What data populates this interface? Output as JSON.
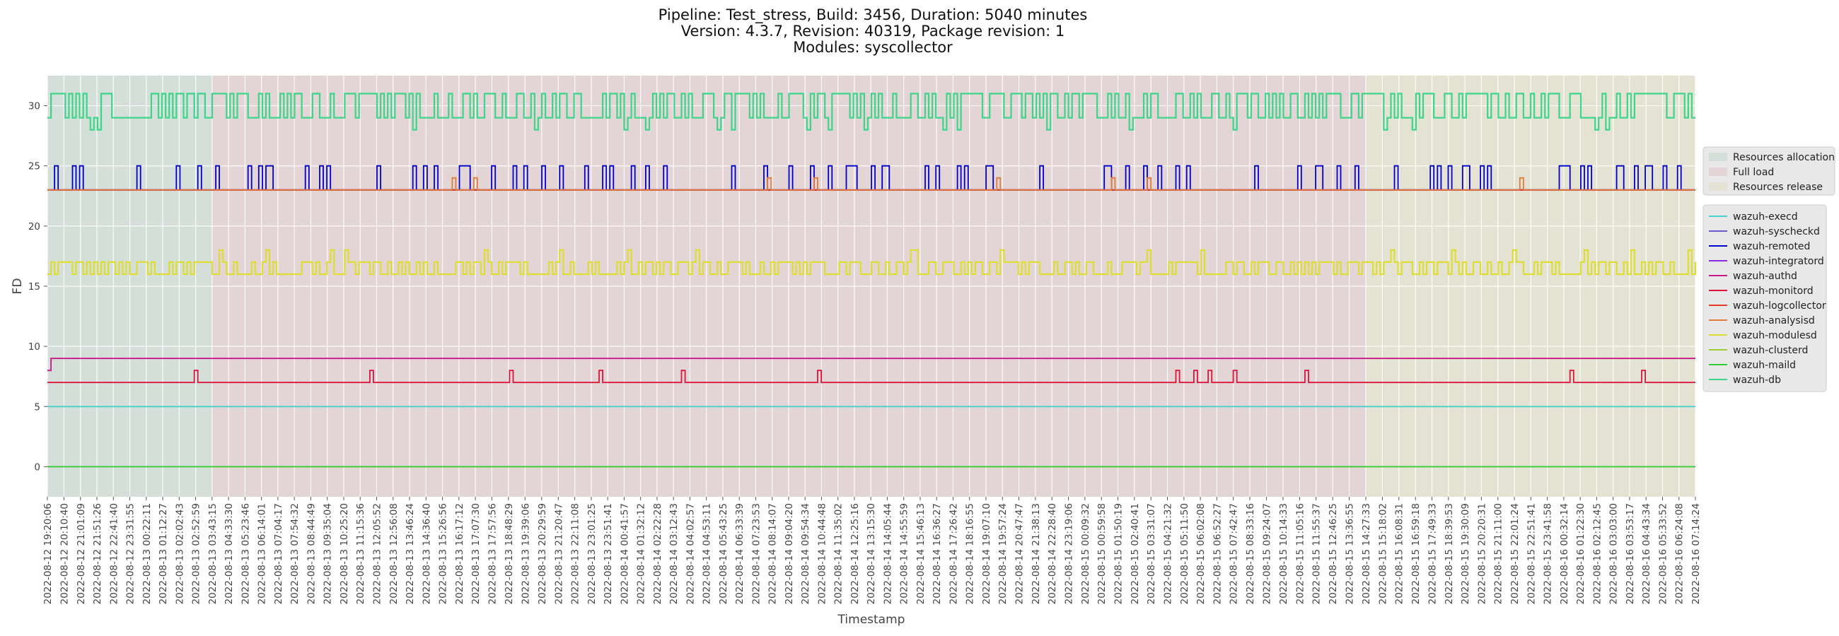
{
  "chart_data": {
    "type": "line",
    "title": "Pipeline: Test_stress, Build: 3456, Duration: 5040 minutes\nVersion: 4.3.7, Revision: 40319, Package revision: 1\nModules: syscollector",
    "xlabel": "Timestamp",
    "ylabel": "FD",
    "ylim": [
      -2.5,
      32.5
    ],
    "yticks": [
      0,
      5,
      10,
      15,
      20,
      25,
      30
    ],
    "grid": true,
    "legend_placement": "right",
    "x_range": [
      "2022-08-12 19:20:06",
      "2022-08-16 07:14:24"
    ],
    "xtick_labels": [
      "2022-08-12 19:20:06",
      "2022-08-12 20:10:40",
      "2022-08-12 21:01:09",
      "2022-08-12 21:51:26",
      "2022-08-12 22:41:40",
      "2022-08-12 23:31:55",
      "2022-08-13 00:22:11",
      "2022-08-13 01:12:27",
      "2022-08-13 02:02:43",
      "2022-08-13 02:52:59",
      "2022-08-13 03:43:15",
      "2022-08-13 04:33:30",
      "2022-08-13 05:23:46",
      "2022-08-13 06:14:01",
      "2022-08-13 07:04:17",
      "2022-08-13 07:54:32",
      "2022-08-13 08:44:49",
      "2022-08-13 09:35:04",
      "2022-08-13 10:25:20",
      "2022-08-13 11:15:36",
      "2022-08-13 12:05:52",
      "2022-08-13 12:56:08",
      "2022-08-13 13:46:24",
      "2022-08-13 14:36:40",
      "2022-08-13 15:26:56",
      "2022-08-13 16:17:12",
      "2022-08-13 17:07:30",
      "2022-08-13 17:57:56",
      "2022-08-13 18:48:29",
      "2022-08-13 19:39:06",
      "2022-08-13 20:29:59",
      "2022-08-13 21:20:47",
      "2022-08-13 22:11:08",
      "2022-08-13 23:01:25",
      "2022-08-13 23:51:41",
      "2022-08-14 00:41:57",
      "2022-08-14 01:32:12",
      "2022-08-14 02:22:28",
      "2022-08-14 03:12:43",
      "2022-08-14 04:02:57",
      "2022-08-14 04:53:11",
      "2022-08-14 05:43:25",
      "2022-08-14 06:33:39",
      "2022-08-14 07:23:53",
      "2022-08-14 08:14:07",
      "2022-08-14 09:04:20",
      "2022-08-14 09:54:34",
      "2022-08-14 10:44:48",
      "2022-08-14 11:35:02",
      "2022-08-14 12:25:16",
      "2022-08-14 13:15:30",
      "2022-08-14 14:05:44",
      "2022-08-14 14:55:59",
      "2022-08-14 15:46:13",
      "2022-08-14 16:36:27",
      "2022-08-14 17:26:42",
      "2022-08-14 18:16:55",
      "2022-08-14 19:07:10",
      "2022-08-14 19:57:24",
      "2022-08-14 20:47:47",
      "2022-08-14 21:38:13",
      "2022-08-14 22:28:40",
      "2022-08-14 23:19:06",
      "2022-08-15 00:09:32",
      "2022-08-15 00:59:58",
      "2022-08-15 01:50:19",
      "2022-08-15 02:40:41",
      "2022-08-15 03:31:07",
      "2022-08-15 04:21:32",
      "2022-08-15 05:11:50",
      "2022-08-15 06:02:08",
      "2022-08-15 06:52:27",
      "2022-08-15 07:42:47",
      "2022-08-15 08:33:16",
      "2022-08-15 09:24:07",
      "2022-08-15 10:14:33",
      "2022-08-15 11:05:16",
      "2022-08-15 11:55:37",
      "2022-08-15 12:46:25",
      "2022-08-15 13:36:55",
      "2022-08-15 14:27:33",
      "2022-08-15 15:18:02",
      "2022-08-15 16:08:31",
      "2022-08-15 16:59:18",
      "2022-08-15 17:49:33",
      "2022-08-15 18:39:53",
      "2022-08-15 19:30:09",
      "2022-08-15 20:20:31",
      "2022-08-15 21:11:00",
      "2022-08-15 22:01:24",
      "2022-08-15 22:51:41",
      "2022-08-15 23:41:58",
      "2022-08-16 00:32:14",
      "2022-08-16 01:22:30",
      "2022-08-16 02:12:45",
      "2022-08-16 03:03:00",
      "2022-08-16 03:53:17",
      "2022-08-16 04:43:34",
      "2022-08-16 05:33:52",
      "2022-08-16 06:24:08",
      "2022-08-16 07:14:24"
    ],
    "phases": [
      {
        "name": "Resources allocation",
        "start": "2022-08-12 19:20:06",
        "end": "2022-08-13 03:43:15",
        "color": "#d3dfd8"
      },
      {
        "name": "Full load",
        "start": "2022-08-13 03:43:15",
        "end": "2022-08-15 14:27:33",
        "color": "#e3d4d6"
      },
      {
        "name": "Resources release",
        "start": "2022-08-15 14:27:33",
        "end": "2022-08-16 07:14:24",
        "color": "#e4e3d3"
      }
    ],
    "series": [
      {
        "name": "wazuh-execd",
        "color": "#48d1cc",
        "base": 5
      },
      {
        "name": "wazuh-syscheckd",
        "color": "#6a5acd",
        "base": 23
      },
      {
        "name": "wazuh-remoted",
        "color": "#0000cd",
        "base": 23,
        "spike_to": 25
      },
      {
        "name": "wazuh-integratord",
        "color": "#8a2be2",
        "base": 23
      },
      {
        "name": "wazuh-authd",
        "color": "#c71585",
        "base": 9,
        "start_value": 8
      },
      {
        "name": "wazuh-monitord",
        "color": "#dc143c",
        "base": 7,
        "spike_to": 8
      },
      {
        "name": "wazuh-logcollector",
        "color": "#e33a2a",
        "base": 23
      },
      {
        "name": "wazuh-analysisd",
        "color": "#e07b39",
        "base": 23,
        "spike_to": 24
      },
      {
        "name": "wazuh-modulesd",
        "color": "#dddd33",
        "min": 16,
        "max": 17,
        "spike_to": 18
      },
      {
        "name": "wazuh-clusterd",
        "color": "#9acd32",
        "base": 0
      },
      {
        "name": "wazuh-maild",
        "color": "#32cd32",
        "base": 0
      },
      {
        "name": "wazuh-db",
        "color": "#3cd58a",
        "min": 29,
        "max": 31,
        "dips_to": 28
      }
    ]
  }
}
